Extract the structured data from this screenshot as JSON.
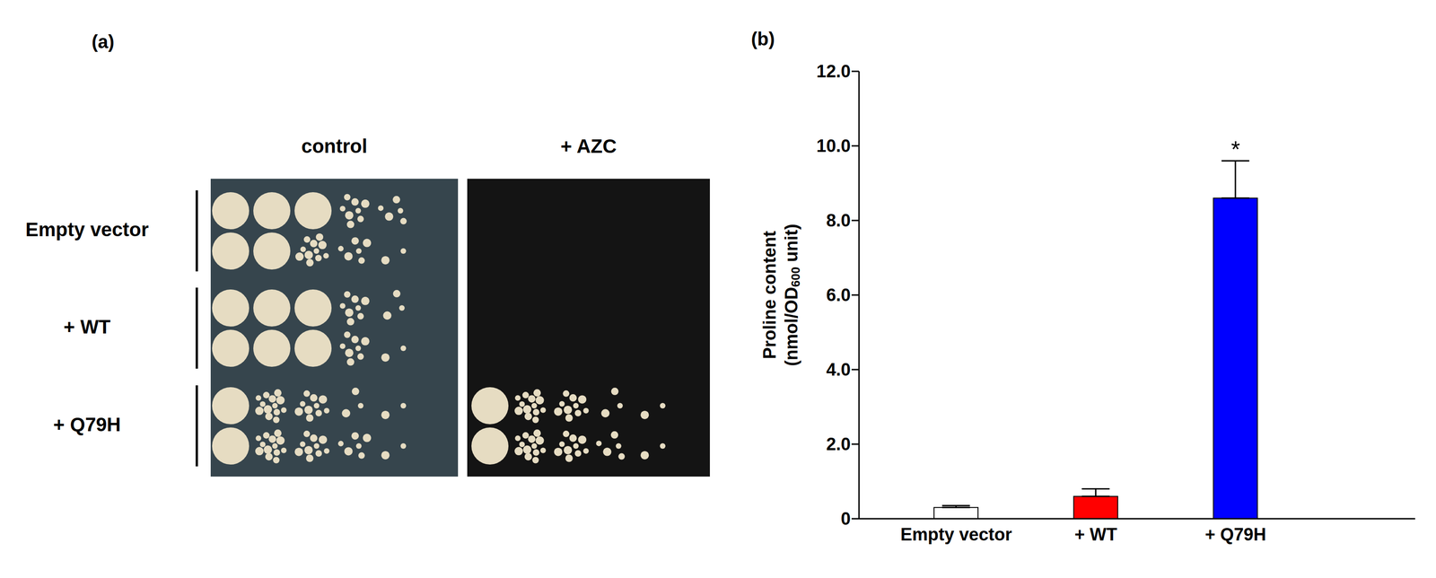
{
  "panel_labels": [
    "(a)",
    "(b)"
  ],
  "spot_assay": {
    "strains": [
      {
        "label": "Empty vector",
        "replicates": 2
      },
      {
        "label": "+ WT",
        "replicates": 2
      },
      {
        "label": "+ Q79H",
        "replicates": 2
      }
    ],
    "plates": [
      {
        "title": "control",
        "growth": [
          [
            1,
            1,
            0.9,
            0.5,
            0.3
          ],
          [
            1,
            0.9,
            0.7,
            0.4,
            0.1
          ],
          [
            1,
            1,
            0.9,
            0.5,
            0.2
          ],
          [
            1,
            1,
            0.9,
            0.5,
            0.1
          ],
          [
            1,
            0.8,
            0.6,
            0.2,
            0.1
          ],
          [
            1,
            0.8,
            0.6,
            0.4,
            0.1
          ]
        ]
      },
      {
        "title": "+ AZC",
        "growth": [
          [
            0,
            0,
            0,
            0,
            0
          ],
          [
            0,
            0,
            0,
            0,
            0
          ],
          [
            0,
            0,
            0,
            0,
            0
          ],
          [
            0,
            0,
            0,
            0,
            0
          ],
          [
            1,
            0.8,
            0.6,
            0.2,
            0.1
          ],
          [
            1,
            0.8,
            0.6,
            0.3,
            0.1
          ]
        ]
      }
    ]
  },
  "chart_data": {
    "type": "bar",
    "categories": [
      "Empty vector",
      "+ WT",
      "+ Q79H"
    ],
    "values": [
      0.3,
      0.6,
      8.6
    ],
    "errors": [
      0.05,
      0.2,
      1.0
    ],
    "colors": [
      "#ffffff",
      "#ff0000",
      "#0000ff"
    ],
    "ylabel": "Proline content (nmol/OD600 unit)",
    "ylim": [
      0,
      12
    ],
    "yticks": [
      0,
      {
        "value": 2,
        "label": "2.0"
      },
      {
        "value": 4,
        "label": "4.0"
      },
      {
        "value": 6,
        "label": "6.0"
      },
      {
        "value": 8,
        "label": "8.0"
      },
      {
        "value": 10,
        "label": "10.0"
      },
      {
        "value": 12,
        "label": "12.0"
      }
    ],
    "annotations": [
      {
        "text": "*",
        "category": "+ Q79H"
      }
    ],
    "grid": false
  }
}
